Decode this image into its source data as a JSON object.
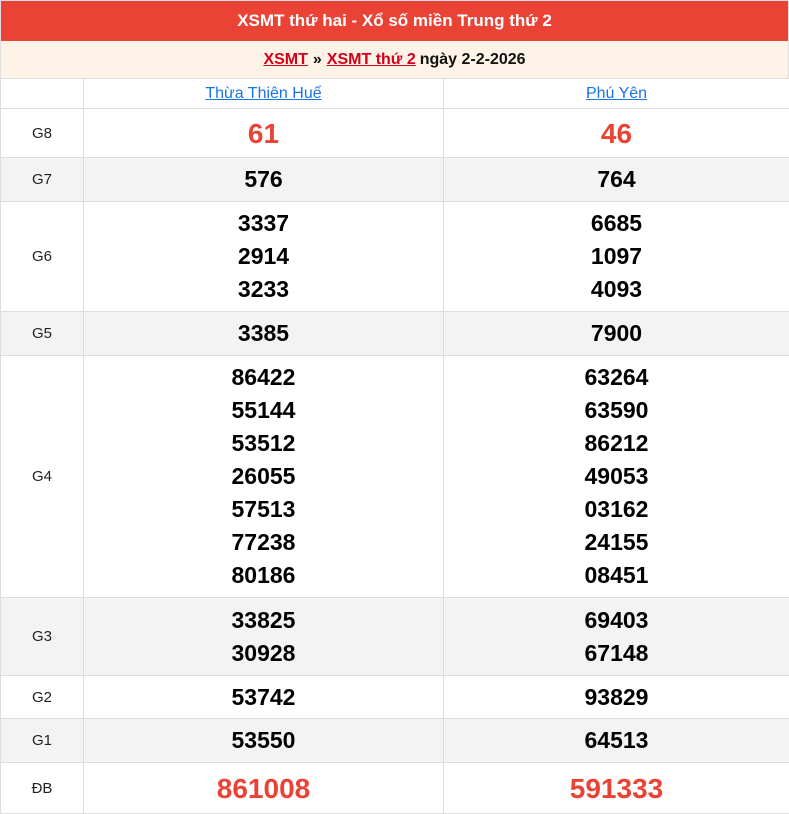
{
  "title": "XSMT thứ hai - Xổ số miền Trung thứ 2",
  "breadcrumb": {
    "link1": "XSMT",
    "separator": "»",
    "link2": "XSMT thứ 2",
    "date_text": "ngày 2-2-2026"
  },
  "provinces": [
    "Thừa Thiên Huế",
    "Phú Yên"
  ],
  "prizes": [
    {
      "label": "G8",
      "col1": [
        "61"
      ],
      "col2": [
        "46"
      ]
    },
    {
      "label": "G7",
      "col1": [
        "576"
      ],
      "col2": [
        "764"
      ]
    },
    {
      "label": "G6",
      "col1": [
        "3337",
        "2914",
        "3233"
      ],
      "col2": [
        "6685",
        "1097",
        "4093"
      ]
    },
    {
      "label": "G5",
      "col1": [
        "3385"
      ],
      "col2": [
        "7900"
      ]
    },
    {
      "label": "G4",
      "col1": [
        "86422",
        "55144",
        "53512",
        "26055",
        "57513",
        "77238",
        "80186"
      ],
      "col2": [
        "63264",
        "63590",
        "86212",
        "49053",
        "03162",
        "24155",
        "08451"
      ]
    },
    {
      "label": "G3",
      "col1": [
        "33825",
        "30928"
      ],
      "col2": [
        "69403",
        "67148"
      ]
    },
    {
      "label": "G2",
      "col1": [
        "53742"
      ],
      "col2": [
        "93829"
      ]
    },
    {
      "label": "G1",
      "col1": [
        "53550"
      ],
      "col2": [
        "64513"
      ]
    },
    {
      "label": "ĐB",
      "col1": [
        "861008"
      ],
      "col2": [
        "591333"
      ]
    }
  ],
  "colors": {
    "header": "#ea4335",
    "subheader": "#fff3e7",
    "highlight": "#ea4335",
    "link": "#1a73e8"
  }
}
